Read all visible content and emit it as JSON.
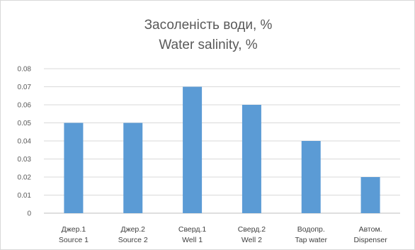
{
  "chart_data": {
    "type": "bar",
    "title": "Засоленість води, %",
    "subtitle": "Water salinity, %",
    "categories": [
      {
        "line1": "Джер.1",
        "line2": "Source 1"
      },
      {
        "line1": "Джер.2",
        "line2": "Source 2"
      },
      {
        "line1": "Сверд.1",
        "line2": "Well 1"
      },
      {
        "line1": "Сверд.2",
        "line2": "Well 2"
      },
      {
        "line1": "Водопр.",
        "line2": "Tap water"
      },
      {
        "line1": "Автом.",
        "line2": "Dispenser"
      }
    ],
    "values": [
      0.05,
      0.05,
      0.07,
      0.06,
      0.04,
      0.02
    ],
    "ylim": [
      0,
      0.08
    ],
    "yticks": [
      "0",
      "0.01",
      "0.02",
      "0.03",
      "0.04",
      "0.05",
      "0.06",
      "0.07",
      "0.08"
    ],
    "grid": true,
    "bar_color": "#5b9bd5",
    "grid_color": "#d9d9d9"
  }
}
